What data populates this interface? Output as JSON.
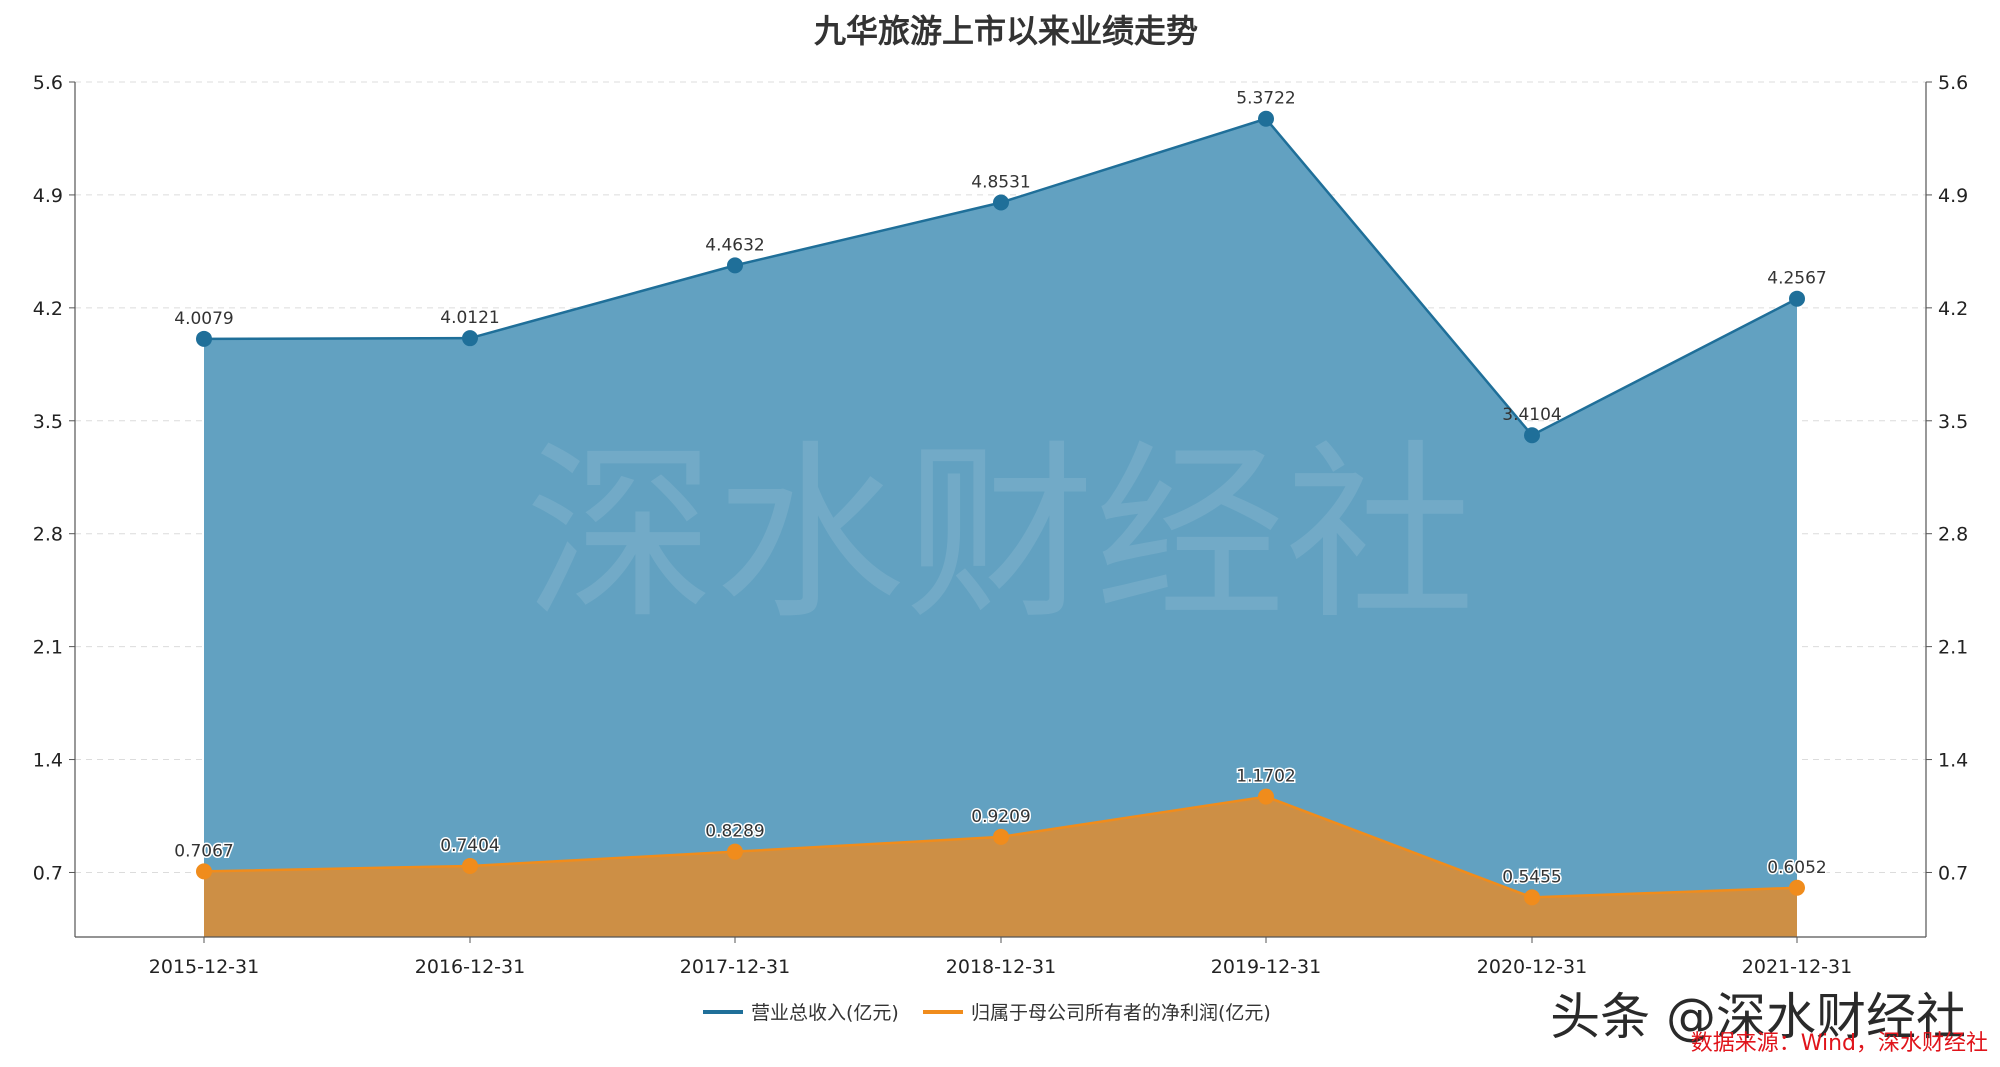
{
  "chart_data": {
    "type": "area",
    "title": "九华旅游上市以来业绩走势",
    "categories": [
      "2015-12-31",
      "2016-12-31",
      "2017-12-31",
      "2018-12-31",
      "2019-12-31",
      "2020-12-31",
      "2021-12-31"
    ],
    "series": [
      {
        "name": "营业总收入(亿元)",
        "values": [
          4.0079,
          4.0121,
          4.4632,
          4.8531,
          5.3722,
          3.4104,
          4.2567
        ],
        "labels": [
          "4.0079",
          "4.0121",
          "4.4632",
          "4.8531",
          "5.3722",
          "3.4104",
          "4.2567"
        ],
        "color": "#1f6f99",
        "fill": "#62a1c1"
      },
      {
        "name": "归属于母公司所有者的净利润(亿元)",
        "values": [
          0.7067,
          0.7404,
          0.8289,
          0.9209,
          1.1702,
          0.5455,
          0.6052
        ],
        "labels": [
          "0.7067",
          "0.7404",
          "0.8289",
          "0.9209",
          "1.1702",
          "0.5455",
          "0.6052"
        ],
        "color": "#f08c1c",
        "fill": "#cd8f45"
      }
    ],
    "ylim": [
      0.3,
      5.6
    ],
    "yticks": [
      "0.7",
      "1.4",
      "2.1",
      "2.8",
      "3.5",
      "4.2",
      "4.9",
      "5.6"
    ],
    "ytick_values": [
      0.7,
      1.4,
      2.1,
      2.8,
      3.5,
      4.2,
      4.9,
      5.6
    ],
    "grid": true,
    "legend_position": "bottom-center",
    "dual_axis_mirror": true
  },
  "watermark": "深水财经社",
  "brand": "头条 @深水财经社",
  "source": "数据来源：Wind，深水财经社"
}
